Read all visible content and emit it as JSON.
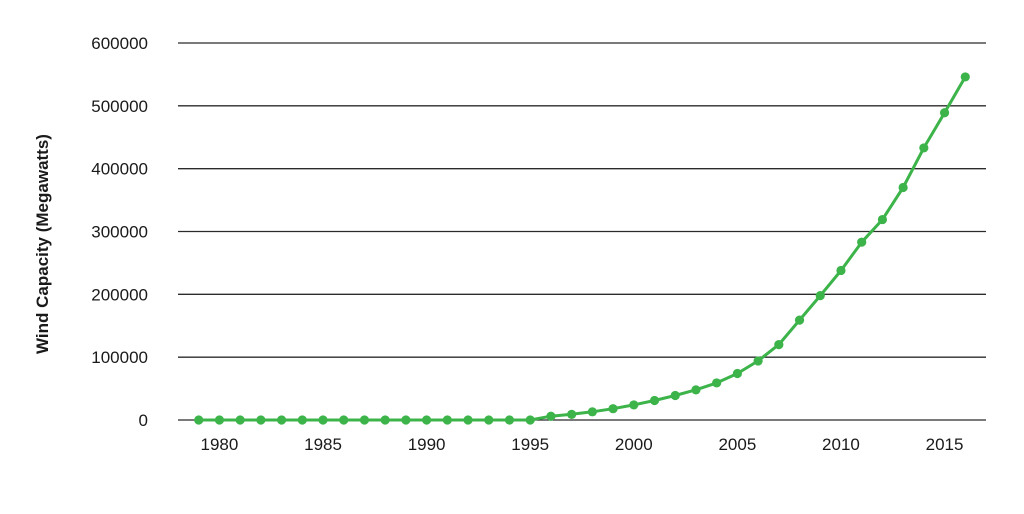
{
  "chart_data": {
    "type": "line",
    "title": "",
    "xlabel": "",
    "ylabel": "Wind Capacity (Megawatts)",
    "xlim": [
      1978,
      2017
    ],
    "ylim": [
      0,
      600000
    ],
    "x_ticks": [
      "1980",
      "1985",
      "1990",
      "1995",
      "2000",
      "2005",
      "2010",
      "2015"
    ],
    "y_ticks": [
      "0",
      "100000",
      "200000",
      "300000",
      "400000",
      "500000",
      "600000"
    ],
    "grid": "horizontal",
    "legend": "none",
    "series": [
      {
        "color": "#3cb44a",
        "x": [
          1979,
          1980,
          1981,
          1982,
          1983,
          1984,
          1985,
          1986,
          1987,
          1988,
          1989,
          1990,
          1991,
          1992,
          1993,
          1994,
          1995,
          1996,
          1997,
          1998,
          1999,
          2000,
          2001,
          2002,
          2003,
          2004,
          2005,
          2006,
          2007,
          2008,
          2009,
          2010,
          2011,
          2012,
          2013,
          2014,
          2015,
          2016
        ],
        "y": [
          0,
          0,
          0,
          0,
          0,
          0,
          0,
          0,
          0,
          0,
          0,
          0,
          0,
          0,
          0,
          0,
          0,
          6000,
          9000,
          13000,
          18000,
          24000,
          31000,
          39000,
          48000,
          59000,
          74000,
          94000,
          120000,
          159000,
          198000,
          238000,
          283000,
          319000,
          370000,
          433000,
          489000,
          546000
        ]
      }
    ]
  }
}
